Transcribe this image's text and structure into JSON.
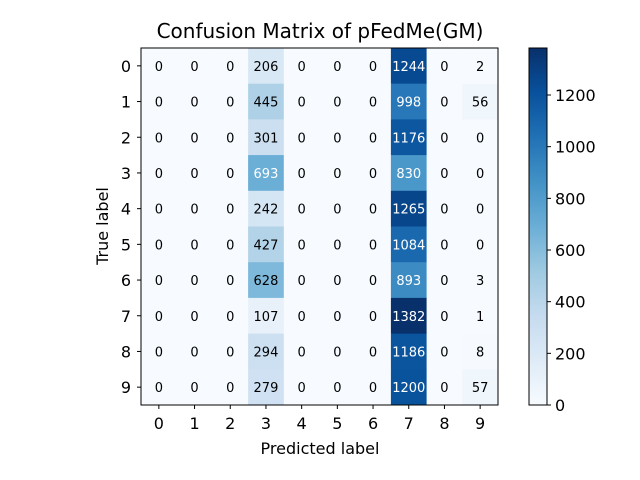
{
  "chart_data": {
    "type": "heatmap",
    "title": "Confusion Matrix of pFedMe(GM)",
    "xlabel": "Predicted label",
    "ylabel": "True label",
    "x_categories": [
      "0",
      "1",
      "2",
      "3",
      "4",
      "5",
      "6",
      "7",
      "8",
      "9"
    ],
    "y_categories": [
      "0",
      "1",
      "2",
      "3",
      "4",
      "5",
      "6",
      "7",
      "8",
      "9"
    ],
    "values": [
      [
        0,
        0,
        0,
        206,
        0,
        0,
        0,
        1244,
        0,
        2
      ],
      [
        0,
        0,
        0,
        445,
        0,
        0,
        0,
        998,
        0,
        56
      ],
      [
        0,
        0,
        0,
        301,
        0,
        0,
        0,
        1176,
        0,
        0
      ],
      [
        0,
        0,
        0,
        693,
        0,
        0,
        0,
        830,
        0,
        0
      ],
      [
        0,
        0,
        0,
        242,
        0,
        0,
        0,
        1265,
        0,
        0
      ],
      [
        0,
        0,
        0,
        427,
        0,
        0,
        0,
        1084,
        0,
        0
      ],
      [
        0,
        0,
        0,
        628,
        0,
        0,
        0,
        893,
        0,
        3
      ],
      [
        0,
        0,
        0,
        107,
        0,
        0,
        0,
        1382,
        0,
        1
      ],
      [
        0,
        0,
        0,
        294,
        0,
        0,
        0,
        1186,
        0,
        8
      ],
      [
        0,
        0,
        0,
        279,
        0,
        0,
        0,
        1200,
        0,
        57
      ]
    ],
    "colormap": "Blues",
    "vmin": 0,
    "vmax": 1382,
    "colorbar_ticks": [
      "0",
      "200",
      "400",
      "600",
      "800",
      "1000",
      "1200"
    ],
    "grid": false
  }
}
